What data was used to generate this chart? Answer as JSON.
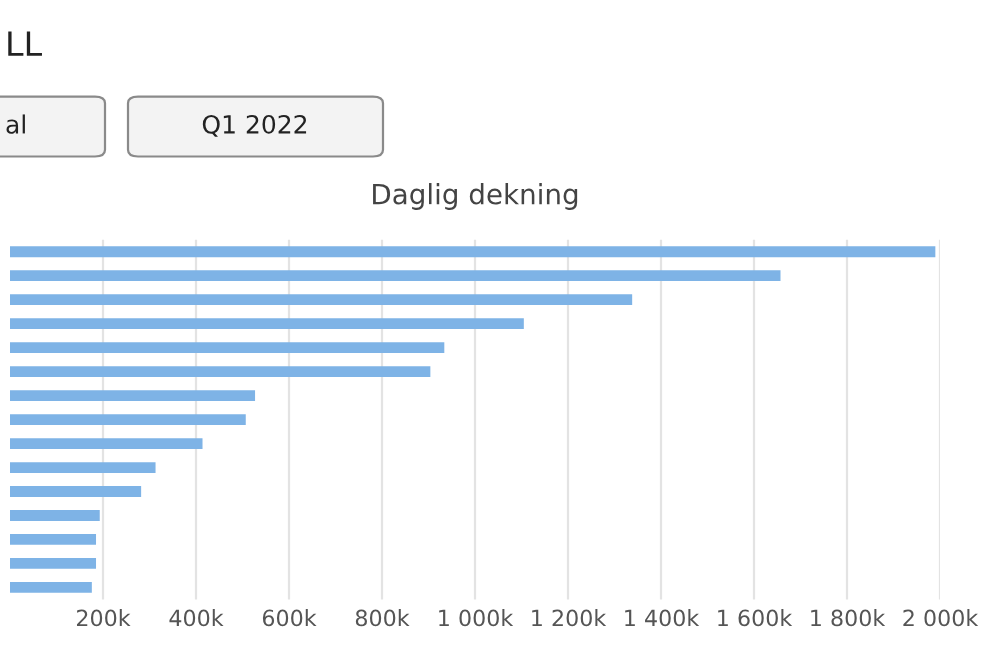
{
  "chart_data": {
    "type": "bar",
    "orientation": "horizontal",
    "title": "Daglig dekning",
    "annotations": [
      "LL",
      "al",
      "Q1 2022"
    ],
    "categories": [
      null,
      null,
      null,
      null,
      null,
      null,
      null,
      null,
      null,
      null,
      null,
      null,
      null,
      null,
      null
    ],
    "values": [
      1990000,
      1657000,
      1338000,
      1105000,
      934000,
      904000,
      527000,
      507000,
      414000,
      313000,
      282000,
      193000,
      185000,
      185000,
      176000
    ],
    "color": "#7eb3e6",
    "xlim": [
      0,
      2000000
    ],
    "xticks": [
      {
        "value": 200000,
        "label": "200k"
      },
      {
        "value": 400000,
        "label": "400k"
      },
      {
        "value": 600000,
        "label": "600k"
      },
      {
        "value": 800000,
        "label": "800k"
      },
      {
        "value": 1000000,
        "label": "1 000k"
      },
      {
        "value": 1200000,
        "label": "1 200k"
      },
      {
        "value": 1400000,
        "label": "1 400k"
      },
      {
        "value": 1600000,
        "label": "1 600k"
      },
      {
        "value": 1800000,
        "label": "1 800k"
      },
      {
        "value": 2000000,
        "label": "2 000k"
      }
    ],
    "grid": "x",
    "legend": false
  }
}
